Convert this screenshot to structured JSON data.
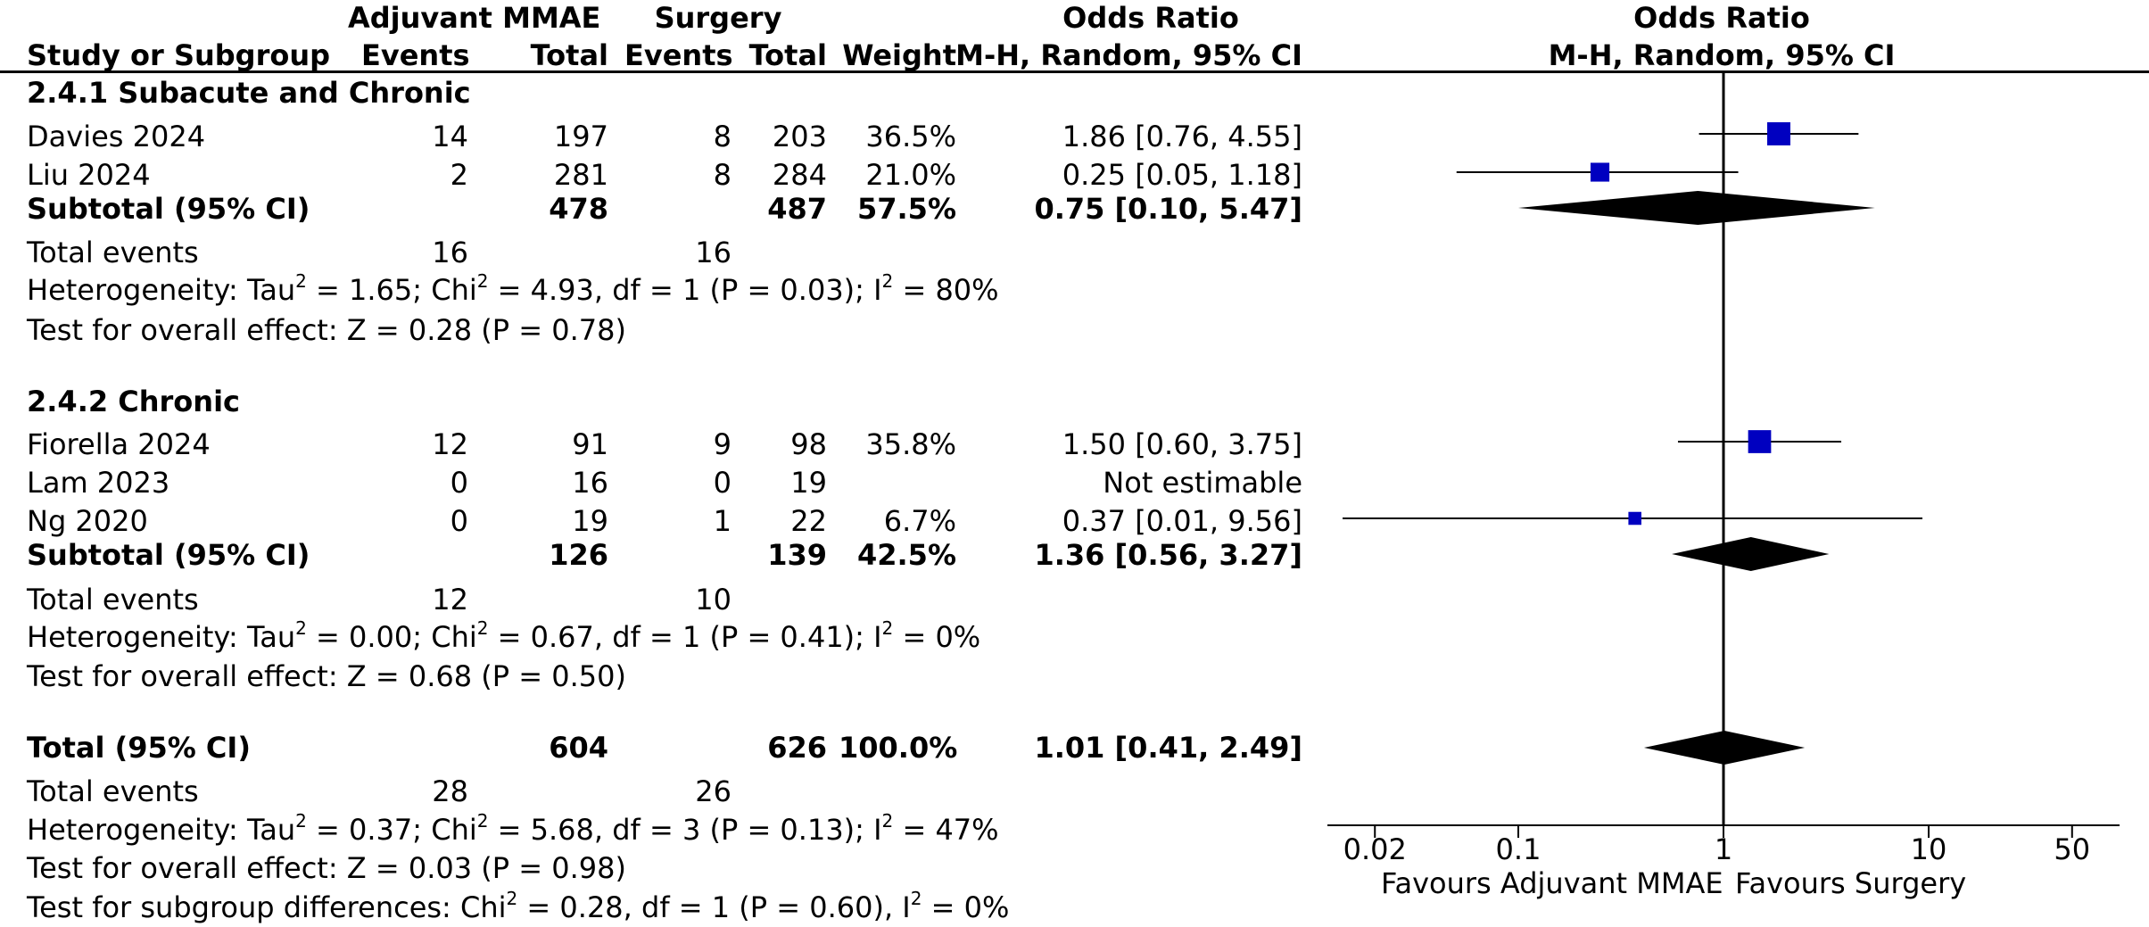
{
  "header": {
    "exp_group": "Adjuvant MMAE",
    "ctrl_group": "Surgery",
    "study_col": "Study or Subgroup",
    "exp_events": "Events",
    "exp_total": "Total",
    "ctrl_events": "Events",
    "ctrl_total": "Total",
    "weight": "Weight",
    "or_title": "Odds Ratio",
    "or_method": "M-H, Random, 95% CI",
    "plot_title": "Odds Ratio",
    "plot_method": "M-H, Random, 95% CI"
  },
  "subgroups": [
    {
      "title": "2.4.1 Subacute and Chronic",
      "studies": [
        {
          "name": "Davies 2024",
          "e_events": "14",
          "e_total": "197",
          "c_events": "8",
          "c_total": "203",
          "weight": "36.5%",
          "ci": "1.86 [0.76, 4.55]"
        },
        {
          "name": "Liu 2024",
          "e_events": "2",
          "e_total": "281",
          "c_events": "8",
          "c_total": "284",
          "weight": "21.0%",
          "ci": "0.25 [0.05, 1.18]"
        }
      ],
      "subtotal": {
        "label": "Subtotal (95% CI)",
        "e_total": "478",
        "c_total": "487",
        "weight": "57.5%",
        "ci": "0.75 [0.10, 5.47]"
      },
      "events": {
        "label": "Total events",
        "e": "16",
        "c": "16"
      },
      "heterogeneity": {
        "prefix": "Heterogeneity: Tau",
        "tau2": " = 1.65; Chi",
        "chi2": " = 4.93, df = 1 (P = 0.03); I",
        "i2": " = 80%"
      },
      "overall": "Test for overall effect: Z = 0.28 (P = 0.78)"
    },
    {
      "title": "2.4.2 Chronic",
      "studies": [
        {
          "name": "Fiorella 2024",
          "e_events": "12",
          "e_total": "91",
          "c_events": "9",
          "c_total": "98",
          "weight": "35.8%",
          "ci": "1.50 [0.60, 3.75]"
        },
        {
          "name": "Lam 2023",
          "e_events": "0",
          "e_total": "16",
          "c_events": "0",
          "c_total": "19",
          "weight": "",
          "ci": "Not estimable"
        },
        {
          "name": "Ng 2020",
          "e_events": "0",
          "e_total": "19",
          "c_events": "1",
          "c_total": "22",
          "weight": "6.7%",
          "ci": "0.37 [0.01, 9.56]"
        }
      ],
      "subtotal": {
        "label": "Subtotal (95% CI)",
        "e_total": "126",
        "c_total": "139",
        "weight": "42.5%",
        "ci": "1.36 [0.56, 3.27]"
      },
      "events": {
        "label": "Total events",
        "e": "12",
        "c": "10"
      },
      "heterogeneity": {
        "prefix": "Heterogeneity: Tau",
        "tau2": " = 0.00; Chi",
        "chi2": " = 0.67, df = 1 (P = 0.41); I",
        "i2": " = 0%"
      },
      "overall": "Test for overall effect: Z = 0.68 (P = 0.50)"
    }
  ],
  "total": {
    "label": "Total (95% CI)",
    "e_total": "604",
    "c_total": "626",
    "weight": "100.0%",
    "ci": "1.01 [0.41, 2.49]",
    "events": {
      "label": "Total events",
      "e": "28",
      "c": "26"
    },
    "heterogeneity": {
      "prefix": "Heterogeneity: Tau",
      "tau2": " = 0.37; Chi",
      "chi2": " = 5.68, df = 3 (P = 0.13); I",
      "i2": " = 47%"
    },
    "overall": "Test for overall effect: Z = 0.03 (P = 0.98)",
    "subgroup_test": {
      "prefix": "Test for subgroup differences: Chi",
      "chi2": " = 0.28, df = 1 (P = 0.60), I",
      "i2": " = 0%"
    }
  },
  "axis": {
    "ticks": [
      "0.02",
      "0.1",
      "1",
      "10",
      "50"
    ],
    "favours_left": "Favours Adjuvant MMAE",
    "favours_right": "Favours Surgery"
  },
  "chart_data": {
    "type": "forest",
    "scale": "log",
    "xlim": [
      0.02,
      50
    ],
    "ticks": [
      0.02,
      0.1,
      1,
      10,
      50
    ],
    "null_line": 1,
    "studies": [
      {
        "name": "Davies 2024",
        "or": 1.86,
        "lo": 0.76,
        "hi": 4.55,
        "weight": 36.5
      },
      {
        "name": "Liu 2024",
        "or": 0.25,
        "lo": 0.05,
        "hi": 1.18,
        "weight": 21.0
      },
      {
        "name": "Fiorella 2024",
        "or": 1.5,
        "lo": 0.6,
        "hi": 3.75,
        "weight": 35.8
      },
      {
        "name": "Lam 2023",
        "or": null,
        "lo": null,
        "hi": null,
        "weight": null
      },
      {
        "name": "Ng 2020",
        "or": 0.37,
        "lo": 0.01,
        "hi": 9.56,
        "weight": 6.7
      }
    ],
    "diamonds": [
      {
        "name": "Subtotal 2.4.1",
        "or": 0.75,
        "lo": 0.1,
        "hi": 5.47
      },
      {
        "name": "Subtotal 2.4.2",
        "or": 1.36,
        "lo": 0.56,
        "hi": 3.27
      },
      {
        "name": "Total",
        "or": 1.01,
        "lo": 0.41,
        "hi": 2.49
      }
    ],
    "square_color": "#0000c0",
    "diamond_color": "#000000"
  }
}
